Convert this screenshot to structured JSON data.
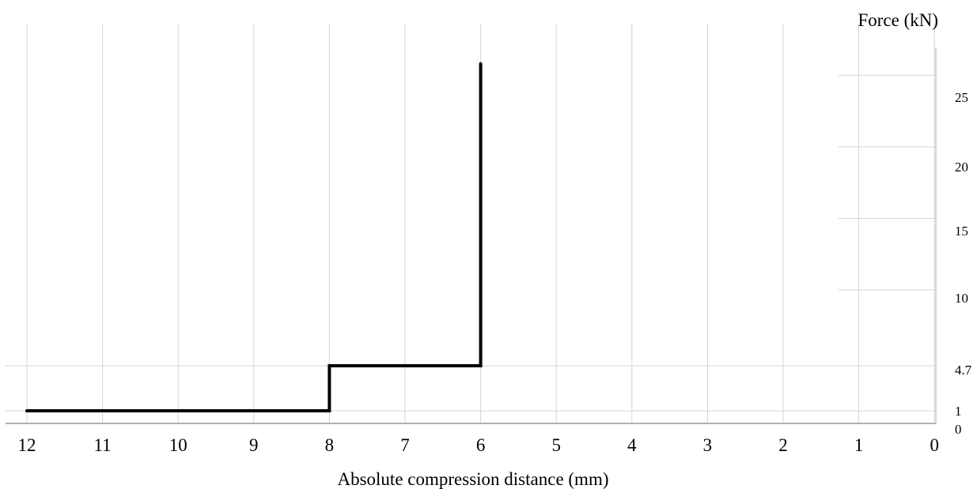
{
  "chart_data": {
    "type": "line",
    "title": "",
    "xlabel": "Absolute compression distance (mm)",
    "ylabel": "Force (kN)",
    "x_axis_reversed": true,
    "xlim": [
      12,
      0
    ],
    "ylim": [
      0,
      25
    ],
    "x_ticks": [
      12,
      11,
      10,
      9,
      8,
      7,
      6,
      5,
      4,
      3,
      2,
      1,
      0
    ],
    "y_ticks": [
      0,
      1,
      4.7,
      10,
      15,
      20,
      25
    ],
    "grid": true,
    "series": [
      {
        "name": "",
        "color": "#000000",
        "step": true,
        "points": [
          {
            "x": 12,
            "y": 1
          },
          {
            "x": 8,
            "y": 1
          },
          {
            "x": 8,
            "y": 4.7
          },
          {
            "x": 6,
            "y": 4.7
          },
          {
            "x": 6,
            "y": 25.8
          }
        ]
      }
    ]
  }
}
